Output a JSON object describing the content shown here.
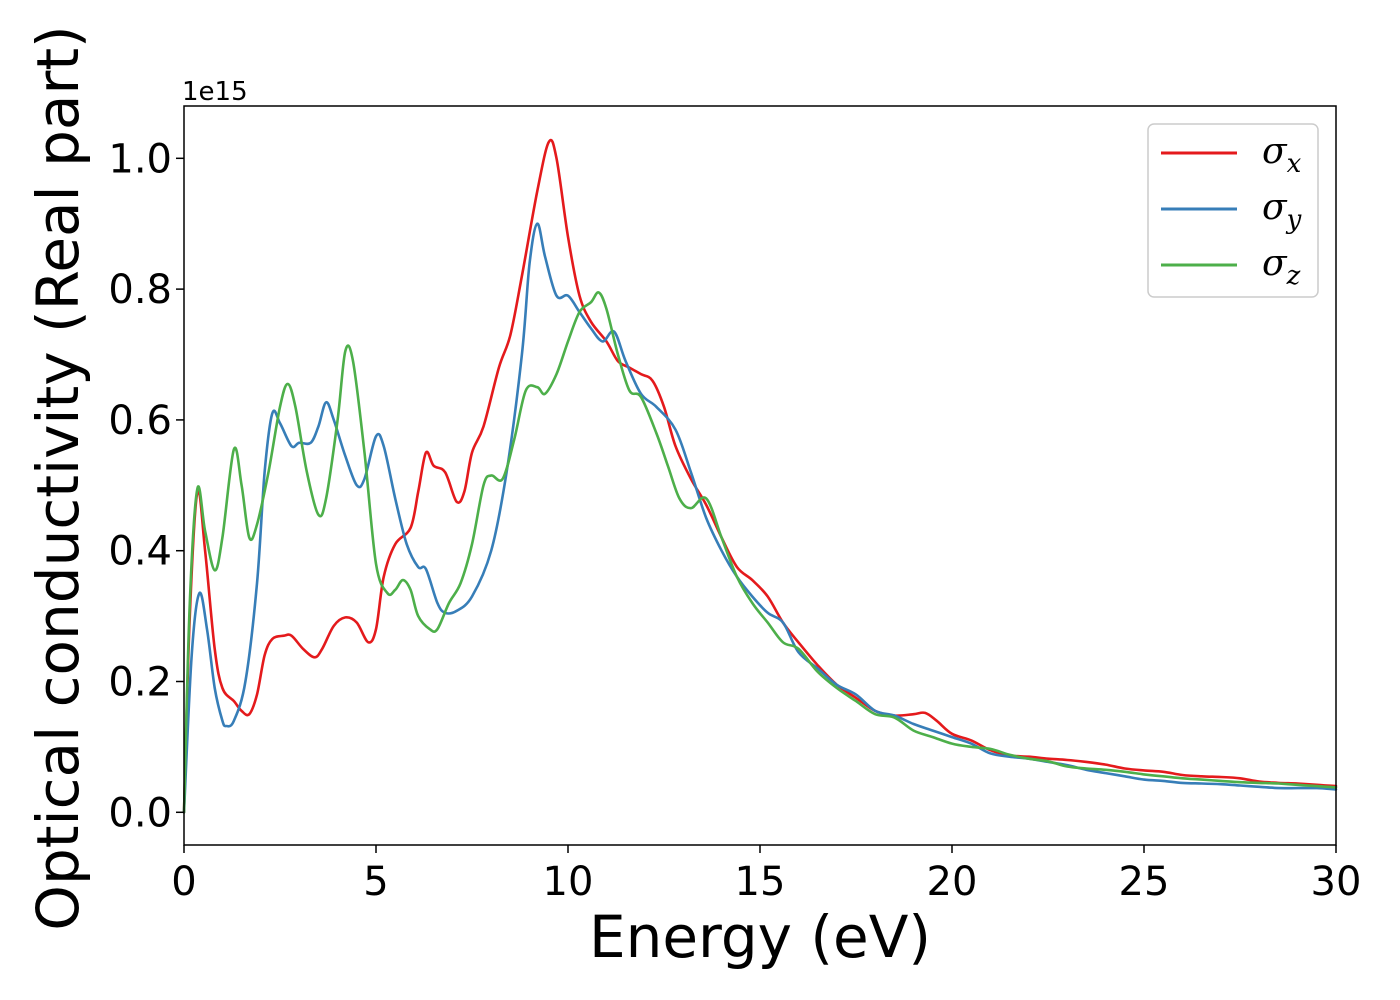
{
  "chart_data": {
    "type": "line",
    "xlabel": "Energy (eV)",
    "ylabel": "Optical conductivity (Real part)",
    "y_offset_text": "1e15",
    "xlim": [
      0,
      30
    ],
    "ylim": [
      -0.05,
      1.08
    ],
    "xticks": [
      0,
      5,
      10,
      15,
      20,
      25,
      30
    ],
    "yticks": [
      0.0,
      0.2,
      0.4,
      0.6,
      0.8,
      1.0
    ],
    "ytick_labels": [
      "0.0",
      "0.2",
      "0.4",
      "0.6",
      "0.8",
      "1.0"
    ],
    "grid": false,
    "legend_position": "top-right",
    "series": [
      {
        "name": "σx",
        "symbol": "σ",
        "subscript": "x",
        "color": "#e41a1c",
        "points": [
          [
            0,
            0
          ],
          [
            0.15,
            0.3
          ],
          [
            0.35,
            0.49
          ],
          [
            0.55,
            0.4
          ],
          [
            0.8,
            0.25
          ],
          [
            1.0,
            0.19
          ],
          [
            1.3,
            0.17
          ],
          [
            1.5,
            0.155
          ],
          [
            1.7,
            0.15
          ],
          [
            1.9,
            0.18
          ],
          [
            2.1,
            0.24
          ],
          [
            2.3,
            0.265
          ],
          [
            2.6,
            0.27
          ],
          [
            2.8,
            0.27
          ],
          [
            3.1,
            0.25
          ],
          [
            3.4,
            0.237
          ],
          [
            3.6,
            0.25
          ],
          [
            3.9,
            0.285
          ],
          [
            4.2,
            0.298
          ],
          [
            4.5,
            0.29
          ],
          [
            4.8,
            0.26
          ],
          [
            5.0,
            0.28
          ],
          [
            5.2,
            0.36
          ],
          [
            5.5,
            0.41
          ],
          [
            5.9,
            0.435
          ],
          [
            6.1,
            0.49
          ],
          [
            6.3,
            0.55
          ],
          [
            6.5,
            0.53
          ],
          [
            6.8,
            0.52
          ],
          [
            7.1,
            0.475
          ],
          [
            7.3,
            0.49
          ],
          [
            7.5,
            0.55
          ],
          [
            7.8,
            0.59
          ],
          [
            8.2,
            0.68
          ],
          [
            8.5,
            0.73
          ],
          [
            8.8,
            0.82
          ],
          [
            9.2,
            0.95
          ],
          [
            9.5,
            1.025
          ],
          [
            9.7,
            1.0
          ],
          [
            10.0,
            0.88
          ],
          [
            10.3,
            0.79
          ],
          [
            10.6,
            0.75
          ],
          [
            11.0,
            0.72
          ],
          [
            11.3,
            0.69
          ],
          [
            11.6,
            0.68
          ],
          [
            11.9,
            0.67
          ],
          [
            12.2,
            0.66
          ],
          [
            12.5,
            0.62
          ],
          [
            12.8,
            0.56
          ],
          [
            13.2,
            0.51
          ],
          [
            13.6,
            0.47
          ],
          [
            14.0,
            0.42
          ],
          [
            14.4,
            0.375
          ],
          [
            14.8,
            0.355
          ],
          [
            15.2,
            0.33
          ],
          [
            15.6,
            0.29
          ],
          [
            16.0,
            0.26
          ],
          [
            16.5,
            0.225
          ],
          [
            17.0,
            0.195
          ],
          [
            17.5,
            0.175
          ],
          [
            18.0,
            0.155
          ],
          [
            18.5,
            0.148
          ],
          [
            19.0,
            0.15
          ],
          [
            19.3,
            0.152
          ],
          [
            19.6,
            0.14
          ],
          [
            20.0,
            0.12
          ],
          [
            20.5,
            0.11
          ],
          [
            21.0,
            0.095
          ],
          [
            21.5,
            0.087
          ],
          [
            22.0,
            0.085
          ],
          [
            22.5,
            0.082
          ],
          [
            23.0,
            0.08
          ],
          [
            23.5,
            0.077
          ],
          [
            24.0,
            0.073
          ],
          [
            24.5,
            0.067
          ],
          [
            25.0,
            0.064
          ],
          [
            25.5,
            0.062
          ],
          [
            26.0,
            0.057
          ],
          [
            26.5,
            0.055
          ],
          [
            27.0,
            0.054
          ],
          [
            27.5,
            0.052
          ],
          [
            28.0,
            0.047
          ],
          [
            28.5,
            0.045
          ],
          [
            29.0,
            0.044
          ],
          [
            29.5,
            0.042
          ],
          [
            30.0,
            0.04
          ]
        ]
      },
      {
        "name": "σy",
        "symbol": "σ",
        "subscript": "y",
        "color": "#377eb8",
        "points": [
          [
            0,
            0
          ],
          [
            0.2,
            0.24
          ],
          [
            0.4,
            0.335
          ],
          [
            0.6,
            0.28
          ],
          [
            0.8,
            0.19
          ],
          [
            1.0,
            0.14
          ],
          [
            1.1,
            0.132
          ],
          [
            1.3,
            0.14
          ],
          [
            1.6,
            0.2
          ],
          [
            1.9,
            0.35
          ],
          [
            2.1,
            0.52
          ],
          [
            2.3,
            0.61
          ],
          [
            2.5,
            0.595
          ],
          [
            2.8,
            0.56
          ],
          [
            3.0,
            0.565
          ],
          [
            3.3,
            0.565
          ],
          [
            3.5,
            0.59
          ],
          [
            3.7,
            0.627
          ],
          [
            3.9,
            0.6
          ],
          [
            4.2,
            0.545
          ],
          [
            4.5,
            0.5
          ],
          [
            4.7,
            0.51
          ],
          [
            5.0,
            0.575
          ],
          [
            5.2,
            0.56
          ],
          [
            5.5,
            0.48
          ],
          [
            5.8,
            0.41
          ],
          [
            6.1,
            0.375
          ],
          [
            6.3,
            0.372
          ],
          [
            6.6,
            0.32
          ],
          [
            6.8,
            0.305
          ],
          [
            7.1,
            0.308
          ],
          [
            7.5,
            0.33
          ],
          [
            8.0,
            0.4
          ],
          [
            8.4,
            0.52
          ],
          [
            8.8,
            0.7
          ],
          [
            9.0,
            0.84
          ],
          [
            9.2,
            0.9
          ],
          [
            9.4,
            0.85
          ],
          [
            9.7,
            0.79
          ],
          [
            10.0,
            0.79
          ],
          [
            10.3,
            0.765
          ],
          [
            10.6,
            0.74
          ],
          [
            10.9,
            0.72
          ],
          [
            11.2,
            0.735
          ],
          [
            11.5,
            0.69
          ],
          [
            11.9,
            0.64
          ],
          [
            12.3,
            0.62
          ],
          [
            12.8,
            0.585
          ],
          [
            13.2,
            0.52
          ],
          [
            13.6,
            0.45
          ],
          [
            14.0,
            0.4
          ],
          [
            14.4,
            0.36
          ],
          [
            14.8,
            0.33
          ],
          [
            15.2,
            0.305
          ],
          [
            15.6,
            0.29
          ],
          [
            16.0,
            0.245
          ],
          [
            16.5,
            0.22
          ],
          [
            17.0,
            0.195
          ],
          [
            17.5,
            0.18
          ],
          [
            18.0,
            0.155
          ],
          [
            18.5,
            0.148
          ],
          [
            19.0,
            0.135
          ],
          [
            19.5,
            0.125
          ],
          [
            20.0,
            0.115
          ],
          [
            20.5,
            0.105
          ],
          [
            21.0,
            0.09
          ],
          [
            21.5,
            0.085
          ],
          [
            22.0,
            0.082
          ],
          [
            22.5,
            0.077
          ],
          [
            23.0,
            0.072
          ],
          [
            23.5,
            0.065
          ],
          [
            24.0,
            0.06
          ],
          [
            24.5,
            0.055
          ],
          [
            25.0,
            0.05
          ],
          [
            25.5,
            0.048
          ],
          [
            26.0,
            0.045
          ],
          [
            26.5,
            0.044
          ],
          [
            27.0,
            0.043
          ],
          [
            27.5,
            0.041
          ],
          [
            28.0,
            0.039
          ],
          [
            28.5,
            0.037
          ],
          [
            29.0,
            0.037
          ],
          [
            29.5,
            0.037
          ],
          [
            30.0,
            0.035
          ]
        ]
      },
      {
        "name": "σz",
        "symbol": "σ",
        "subscript": "z",
        "color": "#4daf4a",
        "points": [
          [
            0,
            0
          ],
          [
            0.15,
            0.32
          ],
          [
            0.35,
            0.495
          ],
          [
            0.55,
            0.43
          ],
          [
            0.8,
            0.37
          ],
          [
            1.0,
            0.42
          ],
          [
            1.3,
            0.555
          ],
          [
            1.5,
            0.5
          ],
          [
            1.7,
            0.42
          ],
          [
            1.9,
            0.44
          ],
          [
            2.2,
            0.52
          ],
          [
            2.5,
            0.62
          ],
          [
            2.7,
            0.655
          ],
          [
            2.9,
            0.62
          ],
          [
            3.2,
            0.52
          ],
          [
            3.5,
            0.455
          ],
          [
            3.7,
            0.48
          ],
          [
            4.0,
            0.6
          ],
          [
            4.2,
            0.705
          ],
          [
            4.4,
            0.69
          ],
          [
            4.7,
            0.55
          ],
          [
            5.0,
            0.38
          ],
          [
            5.3,
            0.335
          ],
          [
            5.5,
            0.34
          ],
          [
            5.7,
            0.355
          ],
          [
            5.9,
            0.34
          ],
          [
            6.1,
            0.3
          ],
          [
            6.4,
            0.28
          ],
          [
            6.6,
            0.28
          ],
          [
            6.9,
            0.32
          ],
          [
            7.2,
            0.35
          ],
          [
            7.5,
            0.41
          ],
          [
            7.8,
            0.5
          ],
          [
            8.0,
            0.515
          ],
          [
            8.3,
            0.51
          ],
          [
            8.6,
            0.57
          ],
          [
            8.9,
            0.645
          ],
          [
            9.2,
            0.65
          ],
          [
            9.4,
            0.64
          ],
          [
            9.7,
            0.67
          ],
          [
            10.0,
            0.72
          ],
          [
            10.3,
            0.765
          ],
          [
            10.6,
            0.78
          ],
          [
            10.8,
            0.795
          ],
          [
            11.0,
            0.77
          ],
          [
            11.3,
            0.7
          ],
          [
            11.6,
            0.645
          ],
          [
            11.9,
            0.635
          ],
          [
            12.3,
            0.58
          ],
          [
            12.6,
            0.53
          ],
          [
            12.9,
            0.48
          ],
          [
            13.2,
            0.465
          ],
          [
            13.6,
            0.48
          ],
          [
            14.0,
            0.42
          ],
          [
            14.4,
            0.36
          ],
          [
            14.8,
            0.32
          ],
          [
            15.2,
            0.29
          ],
          [
            15.6,
            0.26
          ],
          [
            16.0,
            0.25
          ],
          [
            16.5,
            0.215
          ],
          [
            17.0,
            0.19
          ],
          [
            17.5,
            0.17
          ],
          [
            18.0,
            0.15
          ],
          [
            18.5,
            0.145
          ],
          [
            19.0,
            0.125
          ],
          [
            19.5,
            0.115
          ],
          [
            20.0,
            0.105
          ],
          [
            20.5,
            0.1
          ],
          [
            21.0,
            0.097
          ],
          [
            21.5,
            0.088
          ],
          [
            22.0,
            0.082
          ],
          [
            22.5,
            0.078
          ],
          [
            23.0,
            0.07
          ],
          [
            23.5,
            0.067
          ],
          [
            24.0,
            0.065
          ],
          [
            24.5,
            0.062
          ],
          [
            25.0,
            0.058
          ],
          [
            25.5,
            0.055
          ],
          [
            26.0,
            0.052
          ],
          [
            26.5,
            0.05
          ],
          [
            27.0,
            0.048
          ],
          [
            27.5,
            0.046
          ],
          [
            28.0,
            0.045
          ],
          [
            28.5,
            0.044
          ],
          [
            29.0,
            0.042
          ],
          [
            29.5,
            0.04
          ],
          [
            30.0,
            0.038
          ]
        ]
      }
    ]
  }
}
